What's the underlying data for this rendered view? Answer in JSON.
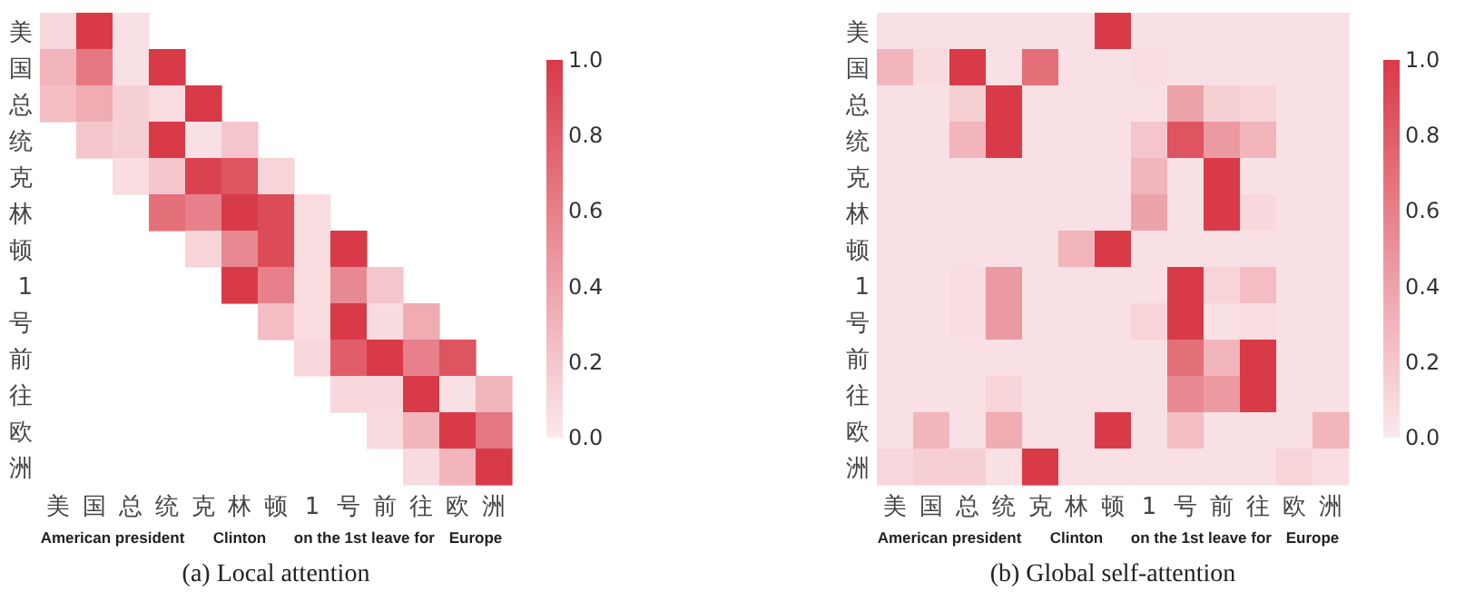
{
  "chart_data": [
    {
      "type": "heatmap",
      "title": "(a) Local attention",
      "categories": [
        "美",
        "国",
        "总",
        "统",
        "克",
        "林",
        "顿",
        "1",
        "号",
        "前",
        "往",
        "欧",
        "洲"
      ],
      "y_categories": [
        "美",
        "国",
        "总",
        "统",
        "克",
        "林",
        "顿",
        "1",
        "号",
        "前",
        "往",
        "欧",
        "洲"
      ],
      "cells": [
        [
          0.1,
          1.0,
          0.05,
          null,
          null,
          null,
          null,
          null,
          null,
          null,
          null,
          null,
          null
        ],
        [
          0.3,
          0.65,
          0.05,
          1.0,
          null,
          null,
          null,
          null,
          null,
          null,
          null,
          null,
          null
        ],
        [
          0.25,
          0.35,
          0.15,
          0.07,
          1.0,
          null,
          null,
          null,
          null,
          null,
          null,
          null,
          null
        ],
        [
          null,
          0.2,
          0.15,
          1.0,
          0.05,
          0.2,
          null,
          null,
          null,
          null,
          null,
          null,
          null
        ],
        [
          null,
          null,
          0.07,
          0.2,
          0.95,
          0.85,
          0.12,
          null,
          null,
          null,
          null,
          null,
          null
        ],
        [
          null,
          null,
          null,
          0.7,
          0.6,
          1.0,
          0.9,
          0.07,
          null,
          null,
          null,
          null,
          null
        ],
        [
          null,
          null,
          null,
          null,
          0.12,
          0.55,
          0.9,
          0.07,
          1.0,
          null,
          null,
          null,
          null
        ],
        [
          null,
          null,
          null,
          null,
          null,
          1.0,
          0.6,
          0.07,
          0.55,
          0.2,
          null,
          null,
          null
        ],
        [
          null,
          null,
          null,
          null,
          null,
          null,
          0.25,
          0.07,
          1.0,
          0.08,
          0.35,
          null,
          null
        ],
        [
          null,
          null,
          null,
          null,
          null,
          null,
          null,
          0.1,
          0.8,
          1.0,
          0.6,
          0.85,
          null
        ],
        [
          null,
          null,
          null,
          null,
          null,
          null,
          null,
          null,
          0.1,
          0.1,
          1.0,
          0.05,
          0.3
        ],
        [
          null,
          null,
          null,
          null,
          null,
          null,
          null,
          null,
          null,
          0.08,
          0.3,
          1.0,
          0.65
        ],
        [
          null,
          null,
          null,
          null,
          null,
          null,
          null,
          null,
          null,
          null,
          0.08,
          0.3,
          1.0
        ]
      ],
      "clim": [
        0,
        1
      ],
      "cticks": [
        {
          "value": 0,
          "label": "0.0"
        },
        {
          "value": 0.2,
          "label": "0.2"
        },
        {
          "value": 0.4,
          "label": "0.4"
        },
        {
          "value": 0.6,
          "label": "0.6"
        },
        {
          "value": 0.8,
          "label": "0.8"
        },
        {
          "value": 1,
          "label": "1.0"
        }
      ],
      "annotations": [
        "American president",
        "Clinton",
        "on the 1st",
        "leave for",
        "Europe"
      ]
    },
    {
      "type": "heatmap",
      "title": "(b) Global self-attention",
      "categories": [
        "美",
        "国",
        "总",
        "统",
        "克",
        "林",
        "顿",
        "1",
        "号",
        "前",
        "往",
        "欧",
        "洲"
      ],
      "y_categories": [
        "美",
        "国",
        "总",
        "统",
        "克",
        "林",
        "顿",
        "1",
        "号",
        "前",
        "往",
        "欧",
        "洲"
      ],
      "cells": [
        [
          0.05,
          0.05,
          0.05,
          0.05,
          0.05,
          0.05,
          1.0,
          0.05,
          0.05,
          0.05,
          0.05,
          0.05,
          0.05
        ],
        [
          0.3,
          0.08,
          1.0,
          0.05,
          0.7,
          0.05,
          0.05,
          0.07,
          0.05,
          0.05,
          0.05,
          0.05,
          0.05
        ],
        [
          0.05,
          0.05,
          0.15,
          1.0,
          0.05,
          0.05,
          0.05,
          0.05,
          0.4,
          0.15,
          0.12,
          0.05,
          0.05
        ],
        [
          0.05,
          0.05,
          0.3,
          1.0,
          0.05,
          0.05,
          0.05,
          0.2,
          0.85,
          0.45,
          0.3,
          0.05,
          0.05
        ],
        [
          0.05,
          0.05,
          0.05,
          0.05,
          0.05,
          0.05,
          0.05,
          0.3,
          0.05,
          1.0,
          0.05,
          0.05,
          0.05
        ],
        [
          0.05,
          0.05,
          0.05,
          0.05,
          0.05,
          0.05,
          0.05,
          0.4,
          0.05,
          1.0,
          0.1,
          0.05,
          0.05
        ],
        [
          0.05,
          0.05,
          0.05,
          0.05,
          0.05,
          0.3,
          1.0,
          0.05,
          0.05,
          0.05,
          0.05,
          0.05,
          0.05
        ],
        [
          0.05,
          0.05,
          0.07,
          0.45,
          0.05,
          0.05,
          0.05,
          0.05,
          1.0,
          0.12,
          0.25,
          0.05,
          0.05
        ],
        [
          0.05,
          0.05,
          0.07,
          0.45,
          0.05,
          0.05,
          0.05,
          0.12,
          1.0,
          0.05,
          0.07,
          0.05,
          0.05
        ],
        [
          0.05,
          0.05,
          0.05,
          0.05,
          0.05,
          0.05,
          0.05,
          0.05,
          0.7,
          0.3,
          1.0,
          0.05,
          0.05
        ],
        [
          0.05,
          0.05,
          0.05,
          0.12,
          0.05,
          0.05,
          0.05,
          0.05,
          0.55,
          0.45,
          1.0,
          0.05,
          0.05
        ],
        [
          0.05,
          0.3,
          0.05,
          0.35,
          0.05,
          0.05,
          1.0,
          0.05,
          0.25,
          0.05,
          0.05,
          0.05,
          0.3
        ],
        [
          0.1,
          0.15,
          0.15,
          0.05,
          1.0,
          0.05,
          0.05,
          0.05,
          0.05,
          0.05,
          0.05,
          0.12,
          0.07
        ]
      ],
      "clim": [
        0,
        1
      ],
      "cticks": [
        {
          "value": 0,
          "label": "0.0"
        },
        {
          "value": 0.2,
          "label": "0.2"
        },
        {
          "value": 0.4,
          "label": "0.4"
        },
        {
          "value": 0.6,
          "label": "0.6"
        },
        {
          "value": 0.8,
          "label": "0.8"
        },
        {
          "value": 1,
          "label": "1.0"
        }
      ],
      "annotations": [
        "American president",
        "Clinton",
        "on the 1st",
        "leave for",
        "Europe"
      ]
    }
  ]
}
